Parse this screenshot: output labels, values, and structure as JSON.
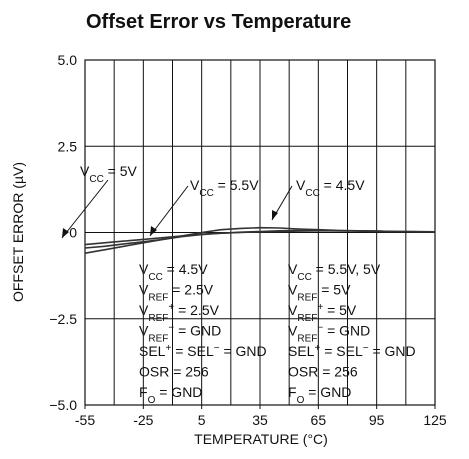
{
  "chart_data": {
    "type": "line",
    "title": "Offset Error vs Temperature",
    "xlabel": "TEMPERATURE (°C)",
    "ylabel": "OFFSET ERROR (µV)",
    "x": [
      -55,
      -45,
      -35,
      -25,
      -15,
      -5,
      5,
      15,
      25,
      35,
      45,
      55,
      65,
      75,
      85,
      95,
      105,
      115,
      125
    ],
    "series": [
      {
        "name": "VCC = 5V",
        "color": "#333333",
        "values": [
          -0.35,
          -0.3,
          -0.25,
          -0.2,
          -0.15,
          -0.1,
          -0.05,
          -0.02,
          0,
          0.02,
          0.03,
          0.04,
          0.05,
          0.05,
          0.05,
          0.04,
          0.03,
          0.03,
          0.02
        ]
      },
      {
        "name": "VCC = 5.5V",
        "color": "#333333",
        "values": [
          -0.45,
          -0.4,
          -0.33,
          -0.27,
          -0.2,
          -0.12,
          -0.06,
          -0.02,
          0.01,
          0.03,
          0.05,
          0.06,
          0.06,
          0.05,
          0.04,
          0.03,
          0.03,
          0.02,
          0.02
        ]
      },
      {
        "name": "VCC = 4.5V",
        "color": "#333333",
        "values": [
          -0.6,
          -0.5,
          -0.4,
          -0.3,
          -0.2,
          -0.1,
          0,
          0.08,
          0.12,
          0.14,
          0.13,
          0.1,
          0.08,
          0.06,
          0.05,
          0.04,
          0.03,
          0.02,
          0.02
        ]
      }
    ],
    "xlim": [
      -55,
      125
    ],
    "xticks": [
      -55,
      -25,
      5,
      35,
      65,
      95,
      125
    ],
    "xgrid": [
      -55,
      -40,
      -25,
      -10,
      5,
      20,
      35,
      50,
      65,
      80,
      95,
      110,
      125
    ],
    "ylim": [
      -5,
      5
    ],
    "yticks": [
      {
        "value": -5,
        "label": "−5.0"
      },
      {
        "value": -2.5,
        "label": "−2.5"
      },
      0,
      {
        "value": 2.5,
        "label": "2.5"
      },
      {
        "value": 5,
        "label": "5.0"
      }
    ],
    "annotations": [
      {
        "segments": [
          {
            "t": "V"
          },
          {
            "t": "CC",
            "shift": "sub"
          },
          {
            "t": " = 5V"
          }
        ]
      },
      {
        "segments": [
          {
            "t": "V"
          },
          {
            "t": "CC",
            "shift": "sub"
          },
          {
            "t": " = 5.5V"
          }
        ]
      },
      {
        "segments": [
          {
            "t": "V"
          },
          {
            "t": "CC",
            "shift": "sub"
          },
          {
            "t": " = 4.5V"
          }
        ]
      }
    ],
    "notes": [
      [
        [
          {
            "t": "V"
          },
          {
            "t": "CC",
            "shift": "sub"
          },
          {
            "t": " = 4.5V"
          }
        ],
        [
          {
            "t": "V"
          },
          {
            "t": "REF",
            "shift": "sub"
          },
          {
            "t": " = 2.5V"
          }
        ],
        [
          {
            "t": "V"
          },
          {
            "t": "REF",
            "shift": "sub"
          },
          {
            "t": "+",
            "shift": "super"
          },
          {
            "t": " = 2.5V"
          }
        ],
        [
          {
            "t": "V"
          },
          {
            "t": "REF",
            "shift": "sub"
          },
          {
            "t": "−",
            "shift": "super"
          },
          {
            "t": " = GND"
          }
        ],
        [
          {
            "t": "SEL"
          },
          {
            "t": "+",
            "shift": "super"
          },
          {
            "t": " = SEL"
          },
          {
            "t": "−",
            "shift": "super"
          },
          {
            "t": " = GND"
          }
        ],
        [
          {
            "t": "OSR = 256"
          }
        ],
        [
          {
            "t": "F"
          },
          {
            "t": "O",
            "shift": "sub"
          },
          {
            "t": " = GND"
          }
        ]
      ],
      [
        [
          {
            "t": "V"
          },
          {
            "t": "CC",
            "shift": "sub"
          },
          {
            "t": " = 5.5V, 5V"
          }
        ],
        [
          {
            "t": "V"
          },
          {
            "t": "REF",
            "shift": "sub"
          },
          {
            "t": " = 5V"
          }
        ],
        [
          {
            "t": "V"
          },
          {
            "t": "REF",
            "shift": "sub"
          },
          {
            "t": "+",
            "shift": "super"
          },
          {
            "t": " = 5V"
          }
        ],
        [
          {
            "t": "V"
          },
          {
            "t": "REF",
            "shift": "sub"
          },
          {
            "t": "−",
            "shift": "super"
          },
          {
            "t": " = GND"
          }
        ],
        [
          {
            "t": "SEL"
          },
          {
            "t": "+",
            "shift": "super"
          },
          {
            "t": " = SEL"
          },
          {
            "t": "−",
            "shift": "super"
          },
          {
            "t": " = GND"
          }
        ],
        [
          {
            "t": "OSR = 256"
          }
        ],
        [
          {
            "t": "F"
          },
          {
            "t": "O",
            "shift": "sub"
          },
          {
            "t": " = GND"
          }
        ]
      ]
    ]
  }
}
